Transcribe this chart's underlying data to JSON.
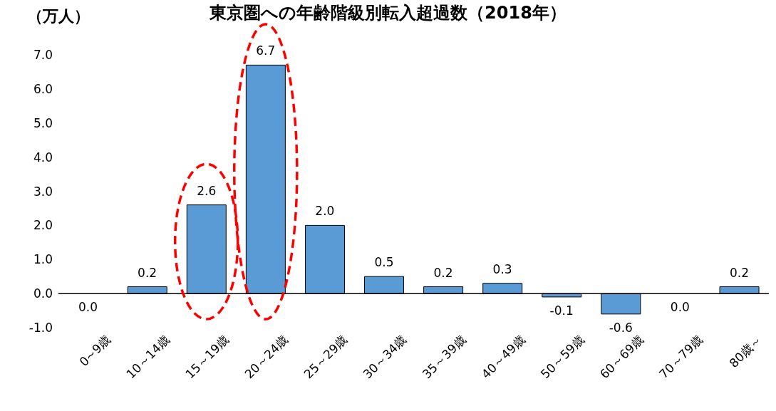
{
  "chart_data": {
    "type": "bar",
    "title": "東京圏への年齢階級別転入超過数（2018年）",
    "ylabel": "（万人）",
    "categories": [
      "0~9歳",
      "10～14歳",
      "15～19歳",
      "20～24歳",
      "25～29歳",
      "30～34歳",
      "35～39歳",
      "40～49歳",
      "50～59歳",
      "60～69歳",
      "70～79歳",
      "80歳～"
    ],
    "values": [
      0.0,
      0.2,
      2.6,
      6.7,
      2.0,
      0.5,
      0.2,
      0.3,
      -0.1,
      -0.6,
      0.0,
      0.2
    ],
    "value_labels": [
      "0.0",
      "0.2",
      "2.6",
      "6.7",
      "2.0",
      "0.5",
      "0.2",
      "0.3",
      "-0.1",
      "-0.6",
      "0.0",
      "0.2"
    ],
    "color": "#5b9bd5",
    "ylim": [
      -1,
      7
    ],
    "yticks": [
      {
        "value": -1,
        "label": "-1.0"
      },
      {
        "value": 0,
        "label": "0.0"
      },
      {
        "value": 1,
        "label": "1.0"
      },
      {
        "value": 2,
        "label": "2.0"
      },
      {
        "value": 3,
        "label": "3.0"
      },
      {
        "value": 4,
        "label": "4.0"
      },
      {
        "value": 5,
        "label": "5.0"
      },
      {
        "value": 6,
        "label": "6.0"
      },
      {
        "value": 7,
        "label": "7.0"
      }
    ],
    "grid": false,
    "ref_lines": [
      {
        "axis": "y",
        "value": 0,
        "color": "#000000"
      }
    ]
  }
}
